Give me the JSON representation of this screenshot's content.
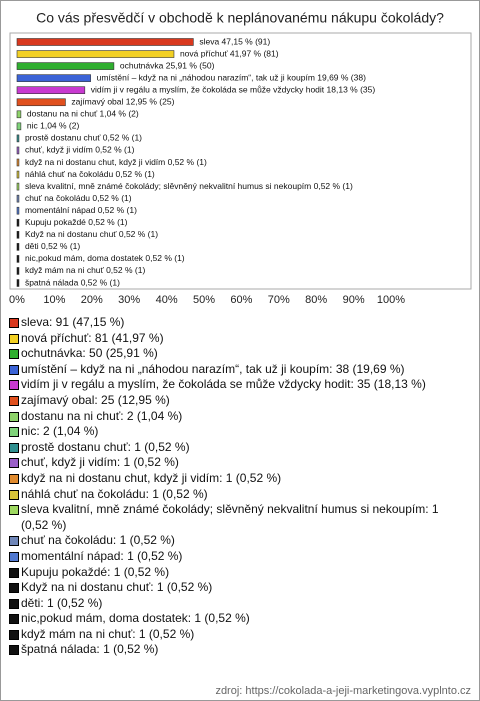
{
  "chart_data": {
    "type": "barh",
    "title": "Co vás přesvědčí v obchodě k neplánovanému nákupu čokolády?",
    "values": [
      47.15,
      41.97,
      25.91,
      19.69,
      18.13,
      12.95,
      1.04,
      1.04,
      0.52,
      0.52,
      0.52,
      0.52,
      0.52,
      0.52,
      0.52,
      0.52,
      0.52,
      0.52,
      0.52,
      0.52,
      0.52
    ],
    "value_labels": [
      "sleva 47,15 % (91)",
      "nová příchuť 41,97 % (81)",
      "ochutnávka 25,91 % (50)",
      "umístění – když na ni „náhodou narazím“, tak už ji koupím 19,69 % (38)",
      "vidím ji v regálu a myslím, že čokoláda se může vždycky hodit 18,13 % (35)",
      "zajímavý obal 12,95 % (25)",
      "dostanu na ni chuť 1,04 % (2)",
      "nic 1,04 % (2)",
      "prostě dostanu chuť 0,52 % (1)",
      "chuť, když ji vidím 0,52 % (1)",
      "když na ni dostanu chut, když ji vidím 0,52 % (1)",
      "náhlá chuť na čokoládu 0,52 % (1)",
      "sleva kvalitní, mně známé čokolády; slěvněný nekvalitní humus si nekoupím 0,52 % (1)",
      "chuť na čokoládu 0,52 % (1)",
      "momentální nápad 0,52 % (1)",
      "Kupuju pokaždé 0,52 % (1)",
      "Když na ni dostanu chuť 0,52 % (1)",
      "děti 0,52 % (1)",
      "nic,pokud mám, doma dostatek 0,52 % (1)",
      "když mám na ni chuť 0,52 % (1)",
      "špatná nálada 0,52 % (1)"
    ],
    "legend_labels": [
      "sleva: 91 (47,15 %)",
      "nová příchuť: 81 (41,97 %)",
      "ochutnávka: 50 (25,91 %)",
      "umístění – když na ni „náhodou narazím“, tak už ji koupím: 38 (19,69 %)",
      "vidím ji v regálu a myslím, že čokoláda se může vždycky hodit: 35 (18,13 %)",
      "zajímavý obal: 25 (12,95 %)",
      "dostanu na ni chuť: 2 (1,04 %)",
      "nic: 2 (1,04 %)",
      "prostě dostanu chuť: 1 (0,52 %)",
      "chuť, když ji vidím: 1 (0,52 %)",
      "když na ni dostanu chut, když ji vidím: 1 (0,52 %)",
      "náhlá chuť na čokoládu: 1 (0,52 %)",
      "sleva kvalitní, mně známé čokolády; slěvněný nekvalitní humus si nekoupím: 1 (0,52 %)",
      "chuť na čokoládu: 1 (0,52 %)",
      "momentální nápad: 1 (0,52 %)",
      "Kupuju pokaždé: 1 (0,52 %)",
      "Když na ni dostanu chuť: 1 (0,52 %)",
      "děti: 1 (0,52 %)",
      "nic,pokud mám, doma dostatek: 1 (0,52 %)",
      "když mám na ni chuť: 1 (0,52 %)",
      "špatná nálada: 1 (0,52 %)"
    ],
    "colors": [
      "#d9381e",
      "#f2d024",
      "#2fae2f",
      "#3b63d6",
      "#c83ad0",
      "#e0501e",
      "#8ed36a",
      "#7fd37a",
      "#2f8f8f",
      "#9a5fc8",
      "#e08a2e",
      "#d8c43a",
      "#9ed860",
      "#6f86b8",
      "#5078d0",
      "#111111",
      "#111111",
      "#111111",
      "#111111",
      "#111111",
      "#111111"
    ],
    "xlim": [
      0,
      100
    ],
    "xticks": [
      {
        "value": 0,
        "label": "0%"
      },
      {
        "value": 10,
        "label": "10%"
      },
      {
        "value": 20,
        "label": "20%"
      },
      {
        "value": 30,
        "label": "30%"
      },
      {
        "value": 40,
        "label": "40%"
      },
      {
        "value": 50,
        "label": "50%"
      },
      {
        "value": 60,
        "label": "60%"
      },
      {
        "value": 70,
        "label": "70%"
      },
      {
        "value": 80,
        "label": "80%"
      },
      {
        "value": 90,
        "label": "90%"
      },
      {
        "value": 100,
        "label": "100%"
      }
    ],
    "grid": false,
    "source": "zdroj: https://cokolada-a-jeji-marketingova.vyplnto.cz"
  }
}
